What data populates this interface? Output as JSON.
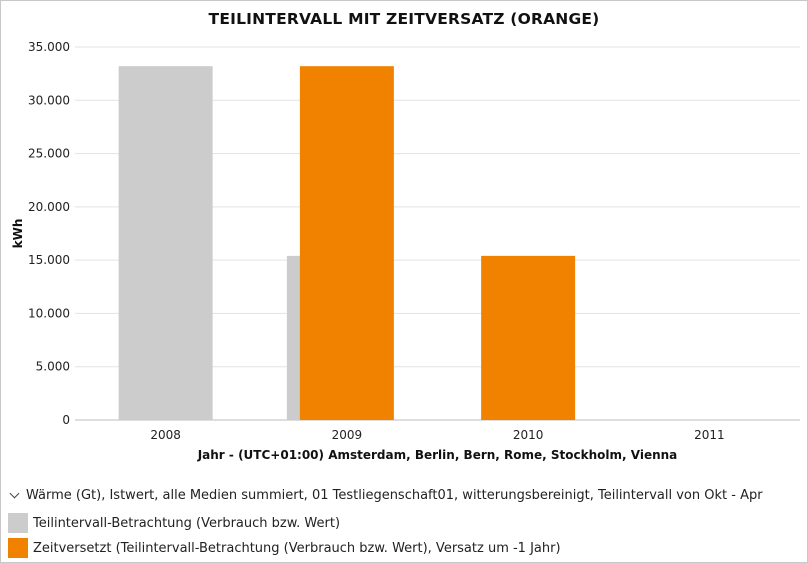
{
  "chart_data": {
    "type": "bar",
    "title": "TEILINTERVALL MIT ZEITVERSATZ (ORANGE)",
    "xlabel": "Jahr - (UTC+01:00) Amsterdam, Berlin, Bern, Rome, Stockholm, Vienna",
    "ylabel": "kWh",
    "categories": [
      "2008",
      "2009",
      "2010",
      "2011"
    ],
    "ylim": [
      0,
      35000
    ],
    "yticks": [
      0,
      5000,
      10000,
      15000,
      20000,
      25000,
      30000,
      35000
    ],
    "ytick_labels": [
      "0",
      "5.000",
      "10.000",
      "15.000",
      "20.000",
      "25.000",
      "30.000",
      "35.000"
    ],
    "grid": true,
    "series": [
      {
        "name": "Teilintervall-Betrachtung (Verbrauch bzw. Wert)",
        "color": "#cccccc",
        "values": [
          33200,
          15400,
          null,
          null
        ]
      },
      {
        "name": "Zeitversetzt (Teilintervall-Betrachtung (Verbrauch bzw. Wert), Versatz um -1 Jahr)",
        "color": "#f08200",
        "values": [
          null,
          33200,
          15400,
          null
        ]
      }
    ]
  },
  "legend": {
    "header": "Wärme (Gt), Istwert, alle Medien summiert, 01 Testliegenschaft01, witterungsbereinigt, Teilintervall von Okt - Apr",
    "items": [
      {
        "label": "Teilintervall-Betrachtung (Verbrauch bzw. Wert)",
        "color": "#cccccc"
      },
      {
        "label": "Zeitversetzt (Teilintervall-Betrachtung (Verbrauch bzw. Wert), Versatz um -1 Jahr)",
        "color": "#f08200"
      }
    ]
  }
}
